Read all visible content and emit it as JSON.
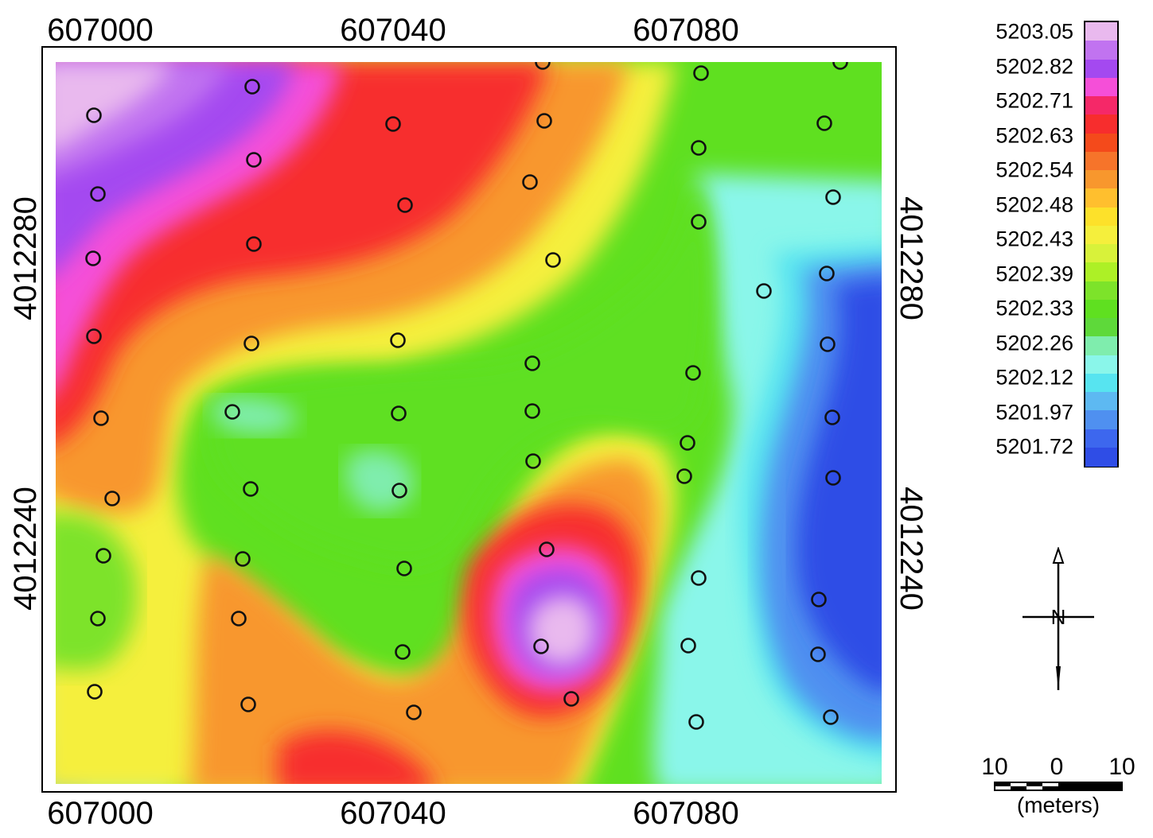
{
  "axes": {
    "x_top_ticks": [
      "607000",
      "607040",
      "607080"
    ],
    "x_bottom_ticks": [
      "607000",
      "607040",
      "607080"
    ],
    "y_left_ticks": [
      "4012280",
      "4012240"
    ],
    "y_right_ticks": [
      "4012280",
      "4012240"
    ]
  },
  "legend": {
    "labels": [
      "5203.05",
      "5202.82",
      "5202.71",
      "5202.63",
      "5202.54",
      "5202.48",
      "5202.43",
      "5202.39",
      "5202.33",
      "5202.26",
      "5202.12",
      "5201.97",
      "5201.72"
    ],
    "colors": [
      "#e9b9ee",
      "#c173f0",
      "#a449f0",
      "#f54fd8",
      "#f52868",
      "#f72d2d",
      "#f44a1b",
      "#f6742a",
      "#f8972d",
      "#ffbf2e",
      "#fde12a",
      "#f5ef3c",
      "#d8f23a",
      "#adf026",
      "#7de32a",
      "#5fe020",
      "#5ed93a",
      "#7fedad",
      "#8af6ea",
      "#57e4f0",
      "#5db9f2",
      "#4f90f0",
      "#3d67ee",
      "#2f4de6"
    ]
  },
  "scale": {
    "left_label": "10",
    "mid_label": "0",
    "right_label": "10",
    "unit": "(meters)"
  },
  "north_arrow": {
    "label": "N"
  },
  "map": {
    "background_color": "#5fe020",
    "sample_point_color": "#111111"
  }
}
